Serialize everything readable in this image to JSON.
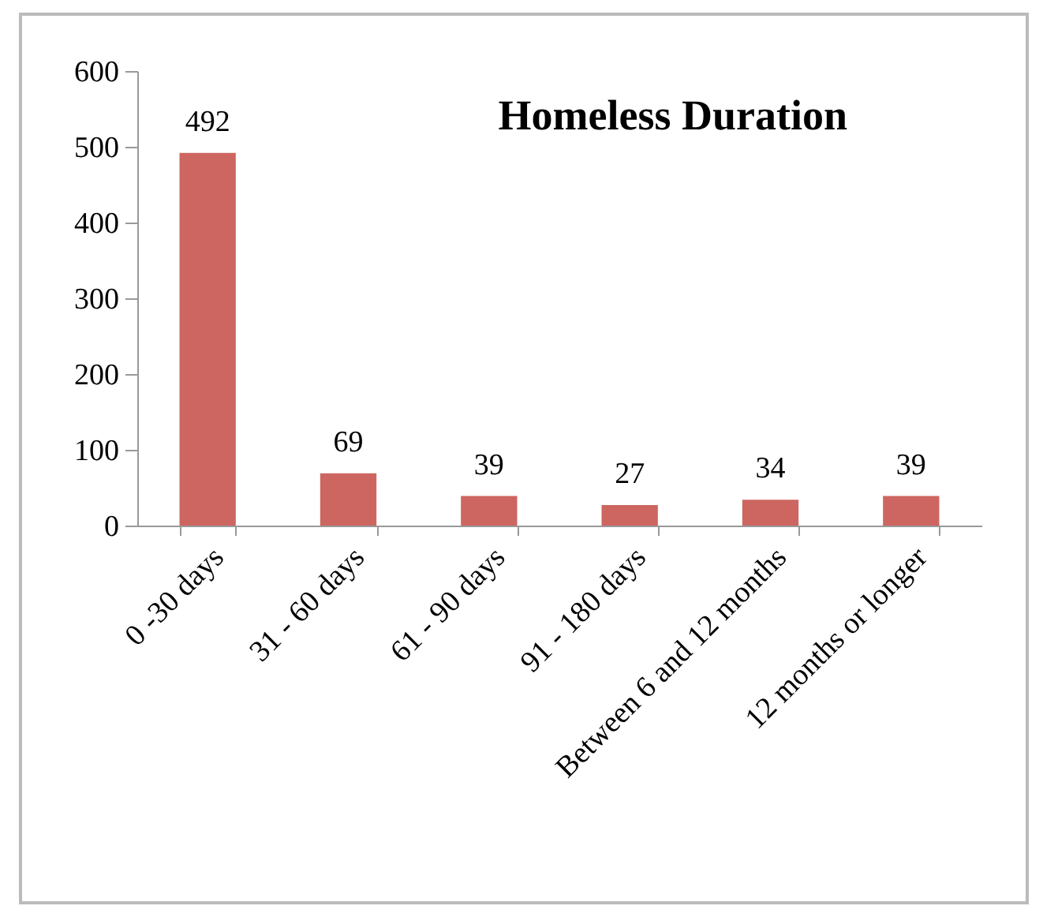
{
  "chart_data": {
    "type": "bar",
    "title": "Homeless Duration",
    "categories": [
      "0 -30 days",
      "31 - 60 days",
      "61 - 90 days",
      "91 - 180 days",
      "Between 6 and 12 months",
      "12 months or longer"
    ],
    "values": [
      492,
      69,
      39,
      27,
      34,
      39
    ],
    "color": "#cd6660",
    "ylim": [
      0,
      600
    ],
    "yticks": [
      0,
      100,
      200,
      300,
      400,
      500,
      600
    ],
    "grid": false,
    "data_labels": true
  }
}
